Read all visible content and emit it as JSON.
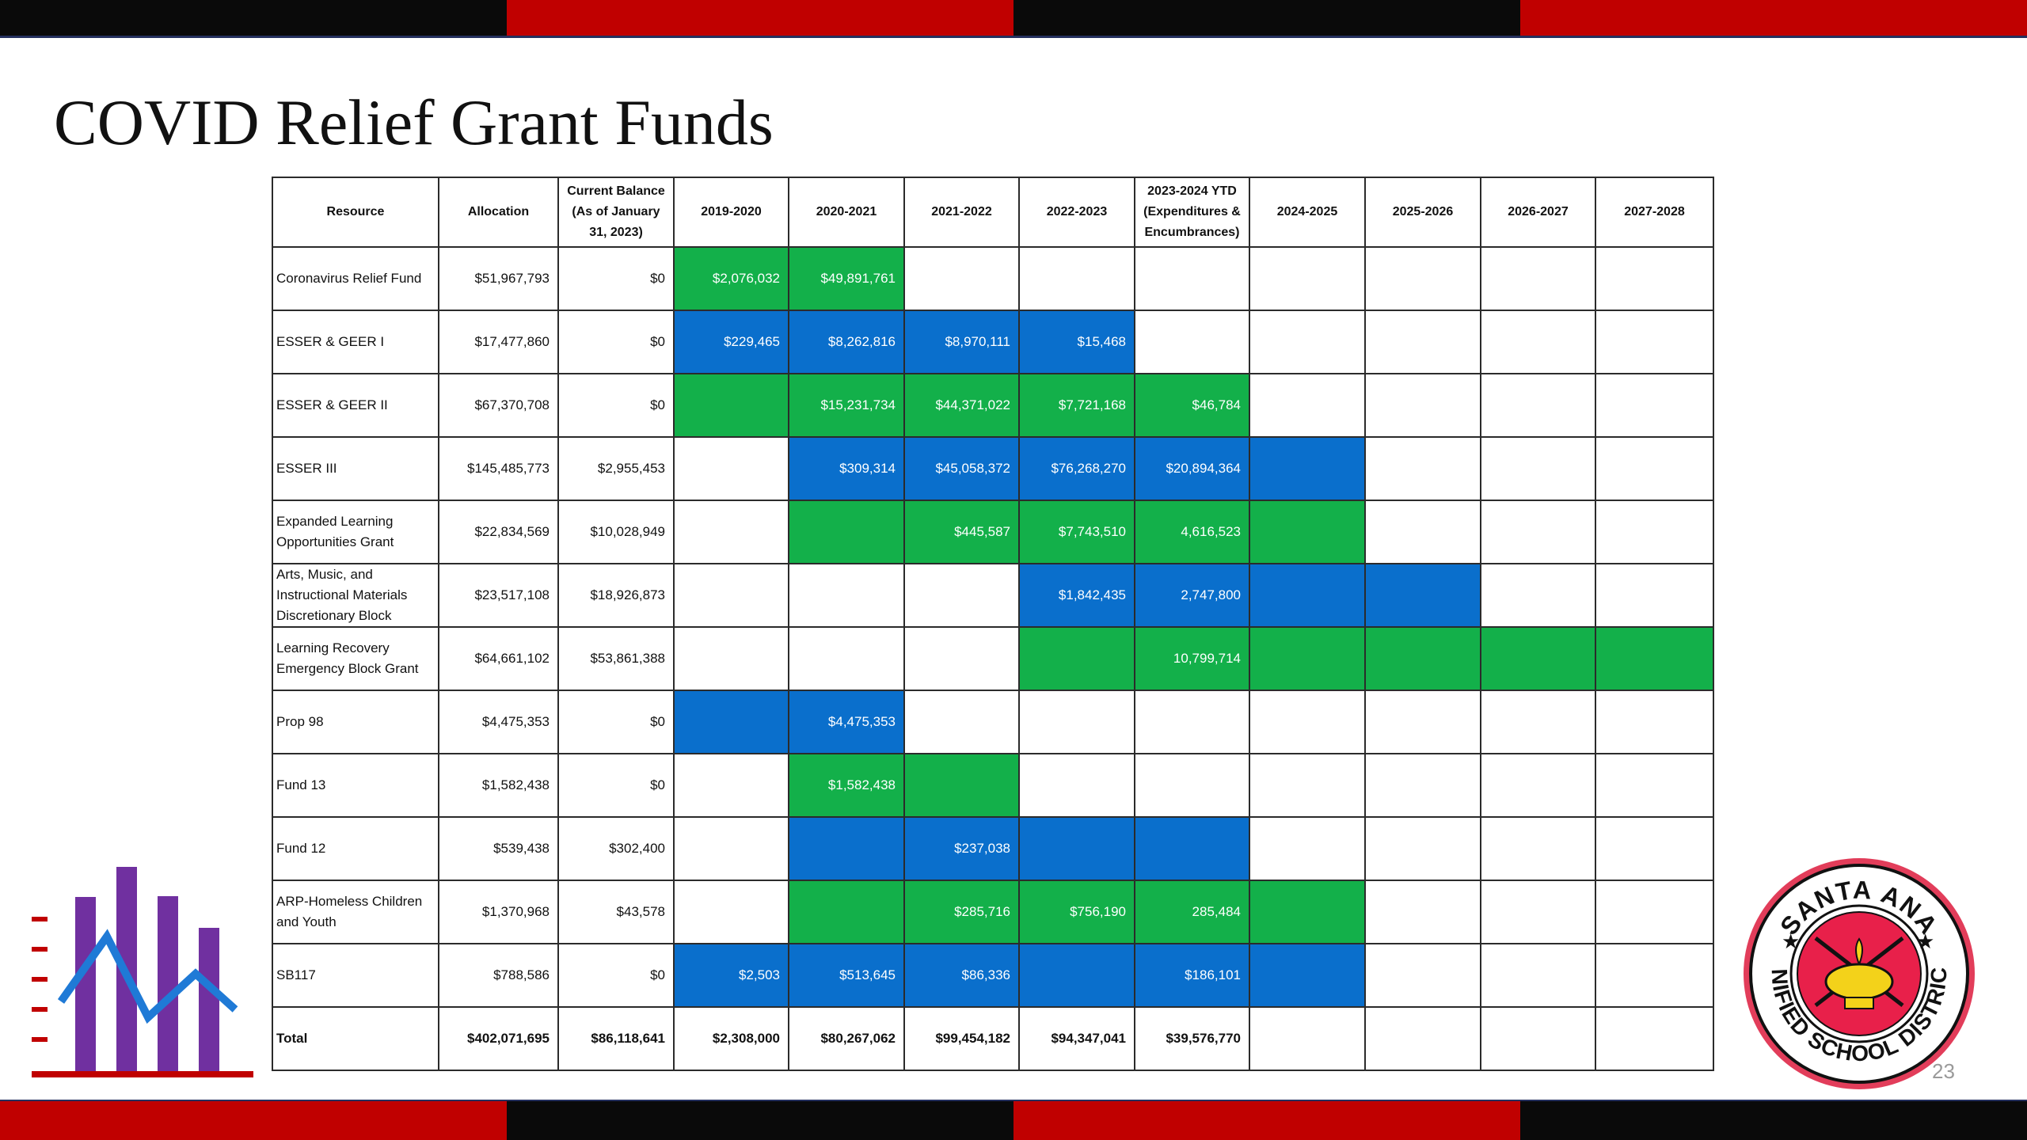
{
  "title": "COVID Relief Grant Funds",
  "slide_number": "23",
  "colors": {
    "green": "#13b04a",
    "blue": "#0a6fcc",
    "red": "#c00000",
    "black": "#0a0a0a"
  },
  "icons": {
    "chart_icon": "bar-line-chart-icon",
    "seal": "santa-ana-usd-seal"
  },
  "seal_text": {
    "top": "SANTA ANA",
    "bottom": "UNIFIED SCHOOL DISTRICT"
  },
  "table": {
    "headers": [
      "Resource",
      "Allocation",
      "Current Balance (As of January 31, 2023)",
      "2019-2020",
      "2020-2021",
      "2021-2022",
      "2022-2023",
      "2023-2024 YTD (Expenditures & Encumbrances)",
      "2024-2025",
      "2025-2026",
      "2026-2027",
      "2027-2028"
    ],
    "rows": [
      {
        "resource": "Coronavirus Relief Fund",
        "allocation": "$51,967,793",
        "balance": "$0",
        "cells": [
          {
            "v": "$2,076,032",
            "c": "green"
          },
          {
            "v": "$49,891,761",
            "c": "green"
          },
          {
            "v": "",
            "c": ""
          },
          {
            "v": "",
            "c": ""
          },
          {
            "v": "",
            "c": ""
          },
          {
            "v": "",
            "c": ""
          },
          {
            "v": "",
            "c": ""
          },
          {
            "v": "",
            "c": ""
          },
          {
            "v": "",
            "c": ""
          }
        ]
      },
      {
        "resource": "ESSER & GEER I",
        "allocation": "$17,477,860",
        "balance": "$0",
        "cells": [
          {
            "v": "$229,465",
            "c": "blue"
          },
          {
            "v": "$8,262,816",
            "c": "blue"
          },
          {
            "v": "$8,970,111",
            "c": "blue"
          },
          {
            "v": "$15,468",
            "c": "blue"
          },
          {
            "v": "",
            "c": ""
          },
          {
            "v": "",
            "c": ""
          },
          {
            "v": "",
            "c": ""
          },
          {
            "v": "",
            "c": ""
          },
          {
            "v": "",
            "c": ""
          }
        ]
      },
      {
        "resource": "ESSER & GEER II",
        "allocation": "$67,370,708",
        "balance": "$0",
        "cells": [
          {
            "v": "",
            "c": "green"
          },
          {
            "v": "$15,231,734",
            "c": "green"
          },
          {
            "v": "$44,371,022",
            "c": "green"
          },
          {
            "v": "$7,721,168",
            "c": "green"
          },
          {
            "v": "$46,784",
            "c": "green"
          },
          {
            "v": "",
            "c": ""
          },
          {
            "v": "",
            "c": ""
          },
          {
            "v": "",
            "c": ""
          },
          {
            "v": "",
            "c": ""
          }
        ]
      },
      {
        "resource": "ESSER III",
        "allocation": "$145,485,773",
        "balance": "$2,955,453",
        "cells": [
          {
            "v": "",
            "c": ""
          },
          {
            "v": "$309,314",
            "c": "blue"
          },
          {
            "v": "$45,058,372",
            "c": "blue"
          },
          {
            "v": "$76,268,270",
            "c": "blue"
          },
          {
            "v": "$20,894,364",
            "c": "blue"
          },
          {
            "v": "",
            "c": "blue"
          },
          {
            "v": "",
            "c": ""
          },
          {
            "v": "",
            "c": ""
          },
          {
            "v": "",
            "c": ""
          }
        ]
      },
      {
        "resource": "Expanded Learning Opportunities Grant",
        "allocation": "$22,834,569",
        "balance": "$10,028,949",
        "cells": [
          {
            "v": "",
            "c": ""
          },
          {
            "v": "",
            "c": "green"
          },
          {
            "v": "$445,587",
            "c": "green"
          },
          {
            "v": "$7,743,510",
            "c": "green"
          },
          {
            "v": "4,616,523",
            "c": "green"
          },
          {
            "v": "",
            "c": "green"
          },
          {
            "v": "",
            "c": ""
          },
          {
            "v": "",
            "c": ""
          },
          {
            "v": "",
            "c": ""
          }
        ]
      },
      {
        "resource": "Arts, Music, and Instructional Materials Discretionary Block",
        "allocation": "$23,517,108",
        "balance": "$18,926,873",
        "cells": [
          {
            "v": "",
            "c": ""
          },
          {
            "v": "",
            "c": ""
          },
          {
            "v": "",
            "c": ""
          },
          {
            "v": "$1,842,435",
            "c": "blue"
          },
          {
            "v": "2,747,800",
            "c": "blue"
          },
          {
            "v": "",
            "c": "blue"
          },
          {
            "v": "",
            "c": "blue"
          },
          {
            "v": "",
            "c": ""
          },
          {
            "v": "",
            "c": ""
          }
        ]
      },
      {
        "resource": "Learning Recovery Emergency Block Grant",
        "allocation": "$64,661,102",
        "balance": "$53,861,388",
        "cells": [
          {
            "v": "",
            "c": ""
          },
          {
            "v": "",
            "c": ""
          },
          {
            "v": "",
            "c": ""
          },
          {
            "v": "",
            "c": "green"
          },
          {
            "v": "10,799,714",
            "c": "green"
          },
          {
            "v": "",
            "c": "green"
          },
          {
            "v": "",
            "c": "green"
          },
          {
            "v": "",
            "c": "green"
          },
          {
            "v": "",
            "c": "green"
          }
        ]
      },
      {
        "resource": "Prop 98",
        "allocation": "$4,475,353",
        "balance": "$0",
        "cells": [
          {
            "v": "",
            "c": "blue"
          },
          {
            "v": "$4,475,353",
            "c": "blue"
          },
          {
            "v": "",
            "c": ""
          },
          {
            "v": "",
            "c": ""
          },
          {
            "v": "",
            "c": ""
          },
          {
            "v": "",
            "c": ""
          },
          {
            "v": "",
            "c": ""
          },
          {
            "v": "",
            "c": ""
          },
          {
            "v": "",
            "c": ""
          }
        ]
      },
      {
        "resource": "Fund 13",
        "allocation": "$1,582,438",
        "balance": "$0",
        "cells": [
          {
            "v": "",
            "c": ""
          },
          {
            "v": "$1,582,438",
            "c": "green"
          },
          {
            "v": "",
            "c": "green"
          },
          {
            "v": "",
            "c": ""
          },
          {
            "v": "",
            "c": ""
          },
          {
            "v": "",
            "c": ""
          },
          {
            "v": "",
            "c": ""
          },
          {
            "v": "",
            "c": ""
          },
          {
            "v": "",
            "c": ""
          }
        ]
      },
      {
        "resource": "Fund 12",
        "allocation": "$539,438",
        "balance": "$302,400",
        "cells": [
          {
            "v": "",
            "c": ""
          },
          {
            "v": "",
            "c": "blue"
          },
          {
            "v": "$237,038",
            "c": "blue"
          },
          {
            "v": "",
            "c": "blue"
          },
          {
            "v": "",
            "c": "blue"
          },
          {
            "v": "",
            "c": ""
          },
          {
            "v": "",
            "c": ""
          },
          {
            "v": "",
            "c": ""
          },
          {
            "v": "",
            "c": ""
          }
        ]
      },
      {
        "resource": "ARP-Homeless Children and Youth",
        "allocation": "$1,370,968",
        "balance": "$43,578",
        "cells": [
          {
            "v": "",
            "c": ""
          },
          {
            "v": "",
            "c": "green"
          },
          {
            "v": "$285,716",
            "c": "green"
          },
          {
            "v": "$756,190",
            "c": "green"
          },
          {
            "v": "285,484",
            "c": "green"
          },
          {
            "v": "",
            "c": "green"
          },
          {
            "v": "",
            "c": ""
          },
          {
            "v": "",
            "c": ""
          },
          {
            "v": "",
            "c": ""
          }
        ]
      },
      {
        "resource": "SB117",
        "allocation": "$788,586",
        "balance": "$0",
        "cells": [
          {
            "v": "$2,503",
            "c": "blue"
          },
          {
            "v": "$513,645",
            "c": "blue"
          },
          {
            "v": "$86,336",
            "c": "blue"
          },
          {
            "v": "",
            "c": "blue"
          },
          {
            "v": "$186,101",
            "c": "blue"
          },
          {
            "v": "",
            "c": "blue"
          },
          {
            "v": "",
            "c": ""
          },
          {
            "v": "",
            "c": ""
          },
          {
            "v": "",
            "c": ""
          }
        ]
      }
    ],
    "total": {
      "resource": "Total",
      "allocation": "$402,071,695",
      "balance": "$86,118,641",
      "cells": [
        "$2,308,000",
        "$80,267,062",
        "$99,454,182",
        "$94,347,041",
        "$39,576,770",
        "",
        "",
        "",
        ""
      ]
    }
  }
}
